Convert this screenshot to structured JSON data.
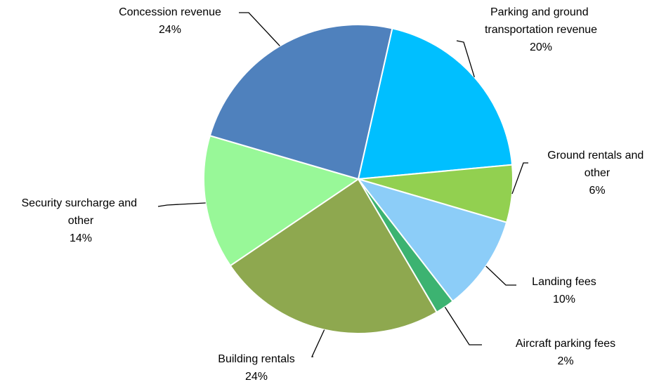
{
  "chart_data": {
    "type": "pie",
    "categories": [
      "Parking and ground transportation revenue",
      "Ground rentals and other",
      "Landing fees",
      "Aircraft parking fees",
      "Building rentals",
      "Security surcharge and other",
      "Concession revenue"
    ],
    "values": [
      20,
      6,
      10,
      2,
      24,
      14,
      24
    ],
    "value_labels": [
      "20%",
      "6%",
      "10%",
      "2%",
      "24%",
      "14%",
      "24%"
    ],
    "colors": [
      "#00bfff",
      "#92d050",
      "#8ccdf8",
      "#3cb371",
      "#8ea84f",
      "#98f898",
      "#4f81bd"
    ]
  }
}
